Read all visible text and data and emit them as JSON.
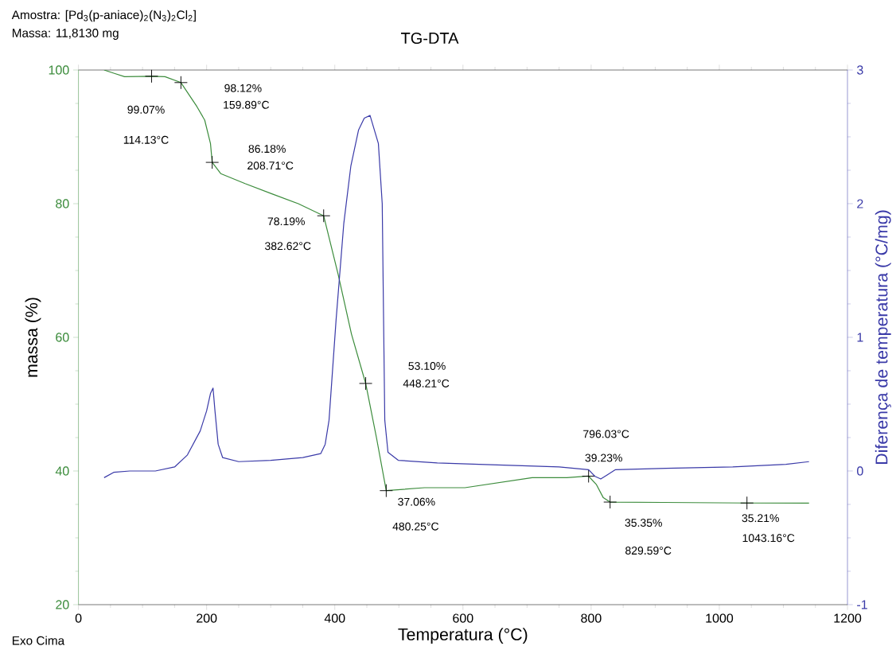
{
  "chart_data": {
    "type": "line",
    "title": "TG-DTA",
    "xlabel": "Temperatura (°C)",
    "ylabel": "massa (%)",
    "y2label": "Diferença de temperatura (°C/mg)",
    "xlim": [
      0,
      1200
    ],
    "xticks": [
      0,
      200,
      400,
      600,
      800,
      1000,
      1200
    ],
    "ylim": [
      20,
      100
    ],
    "yticks": [
      20,
      40,
      60,
      80,
      100
    ],
    "y2lim": [
      -1,
      3
    ],
    "y2ticks": [
      -1,
      0,
      1,
      2,
      3
    ],
    "grid": false,
    "marker": "none",
    "line_style": "solid",
    "series": [
      {
        "color": "#3c8c3c",
        "x": [
          40,
          56,
          72,
          114.13,
          135,
          159.89,
          185,
          197,
          206,
          208.71,
          222,
          260,
          301,
          343,
          382.62,
          405,
          426,
          448.21,
          465,
          480.25,
          540,
          603,
          708,
          762,
          796.03,
          808,
          819,
          829.59,
          912,
          1043.16,
          1140
        ],
        "values": [
          100,
          99.5,
          99,
          99.07,
          99,
          98.12,
          94.5,
          92.5,
          89,
          86.18,
          84.5,
          83,
          81.5,
          80,
          78.19,
          69.5,
          60.5,
          53.1,
          45,
          37.06,
          37.5,
          37.5,
          39,
          39,
          39.23,
          38,
          36,
          35.35,
          35.3,
          35.21,
          35.2
        ]
      },
      {
        "color": "#3a3aa8",
        "axis": "y2",
        "x": [
          40,
          55,
          80,
          120,
          150,
          170,
          190,
          200,
          206,
          210,
          213,
          218,
          225,
          250,
          300,
          350,
          378,
          385,
          391,
          402,
          414,
          425,
          437,
          446,
          455,
          468,
          474,
          476,
          478,
          483,
          499,
          560,
          625,
          750,
          796,
          806,
          815,
          825,
          838,
          917,
          1021,
          1104,
          1140
        ],
        "values": [
          -0.05,
          -0.01,
          0.0,
          0.0,
          0.03,
          0.12,
          0.3,
          0.45,
          0.58,
          0.62,
          0.45,
          0.2,
          0.1,
          0.07,
          0.08,
          0.1,
          0.13,
          0.2,
          0.38,
          1.13,
          1.85,
          2.28,
          2.55,
          2.64,
          2.66,
          2.45,
          2.0,
          1.18,
          0.38,
          0.14,
          0.08,
          0.06,
          0.05,
          0.03,
          0.01,
          -0.04,
          -0.06,
          -0.03,
          0.01,
          0.02,
          0.03,
          0.05,
          0.07
        ]
      },
      {
        "type": "scatter",
        "marker": "cross",
        "color": "#000000",
        "x": [
          114.13,
          159.89,
          208.71,
          382.62,
          448.21,
          480.25,
          796.03,
          829.59,
          1043.16
        ],
        "values": [
          99.07,
          98.12,
          86.18,
          78.19,
          53.1,
          37.06,
          39.23,
          35.35,
          35.21
        ]
      }
    ],
    "annotations": [
      "Amostra: [Pd$_{3}$(p-aniace)$_{2}$(N$_{3}$)$_{2}$Cl$_{2}$]",
      "Massa: 11,8130 mg",
      "99.07%",
      "114.13°C",
      "98.12%",
      "159.89°C",
      "86.18%",
      "208.71°C",
      "78.19%",
      "382.62°C",
      "53.10%",
      "448.21°C",
      "37.06%",
      "480.25°C",
      "796.03°C",
      "39.23%",
      "35.35%",
      "829.59°C",
      "35.21%",
      "1043.16°C",
      "Exo Cima"
    ]
  }
}
